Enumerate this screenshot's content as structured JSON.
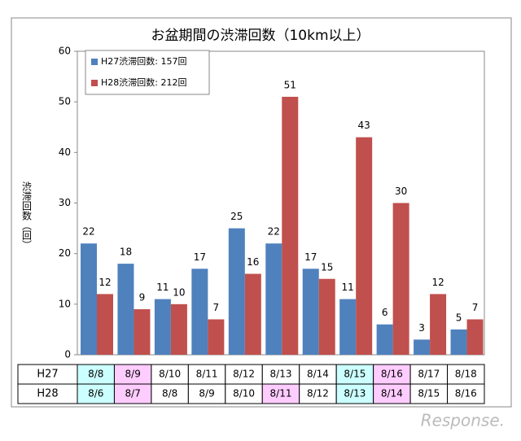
{
  "chart_data": {
    "type": "bar",
    "title": "お盆期間の渋滞回数（10km以上）",
    "y_label": "渋滞回数（回）",
    "series": [
      {
        "name": "H27渋滞回数: 157回",
        "color": "#4f81bd",
        "values": [
          22,
          18,
          11,
          17,
          25,
          22,
          17,
          11,
          6,
          3,
          5
        ]
      },
      {
        "name": "H28渋滞回数: 212回",
        "color": "#c0504d",
        "values": [
          12,
          9,
          10,
          7,
          16,
          51,
          15,
          43,
          30,
          12,
          7
        ]
      }
    ],
    "ylim": [
      0,
      60
    ],
    "yticks": [
      0,
      10,
      20,
      30,
      40,
      50,
      60
    ],
    "table": [
      {
        "label": "H27",
        "cells": [
          "8/8",
          "8/9",
          "8/10",
          "8/11",
          "8/12",
          "8/13",
          "8/14",
          "8/15",
          "8/16",
          "8/17",
          "8/18"
        ],
        "cell_colors": [
          "#ccffff",
          "#ffccff",
          "#ffffff",
          "#ffffff",
          "#ffffff",
          "#ffffff",
          "#ffffff",
          "#ccffff",
          "#ffccff",
          "#ffffff",
          "#ffffff"
        ]
      },
      {
        "label": "H28",
        "cells": [
          "8/6",
          "8/7",
          "8/8",
          "8/9",
          "8/10",
          "8/11",
          "8/12",
          "8/13",
          "8/14",
          "8/15",
          "8/16"
        ],
        "cell_colors": [
          "#ccffff",
          "#ffccff",
          "#ffffff",
          "#ffffff",
          "#ffffff",
          "#ffccff",
          "#ffffff",
          "#ccffff",
          "#ffccff",
          "#ffffff",
          "#ffffff"
        ]
      }
    ],
    "watermark": "Response."
  }
}
